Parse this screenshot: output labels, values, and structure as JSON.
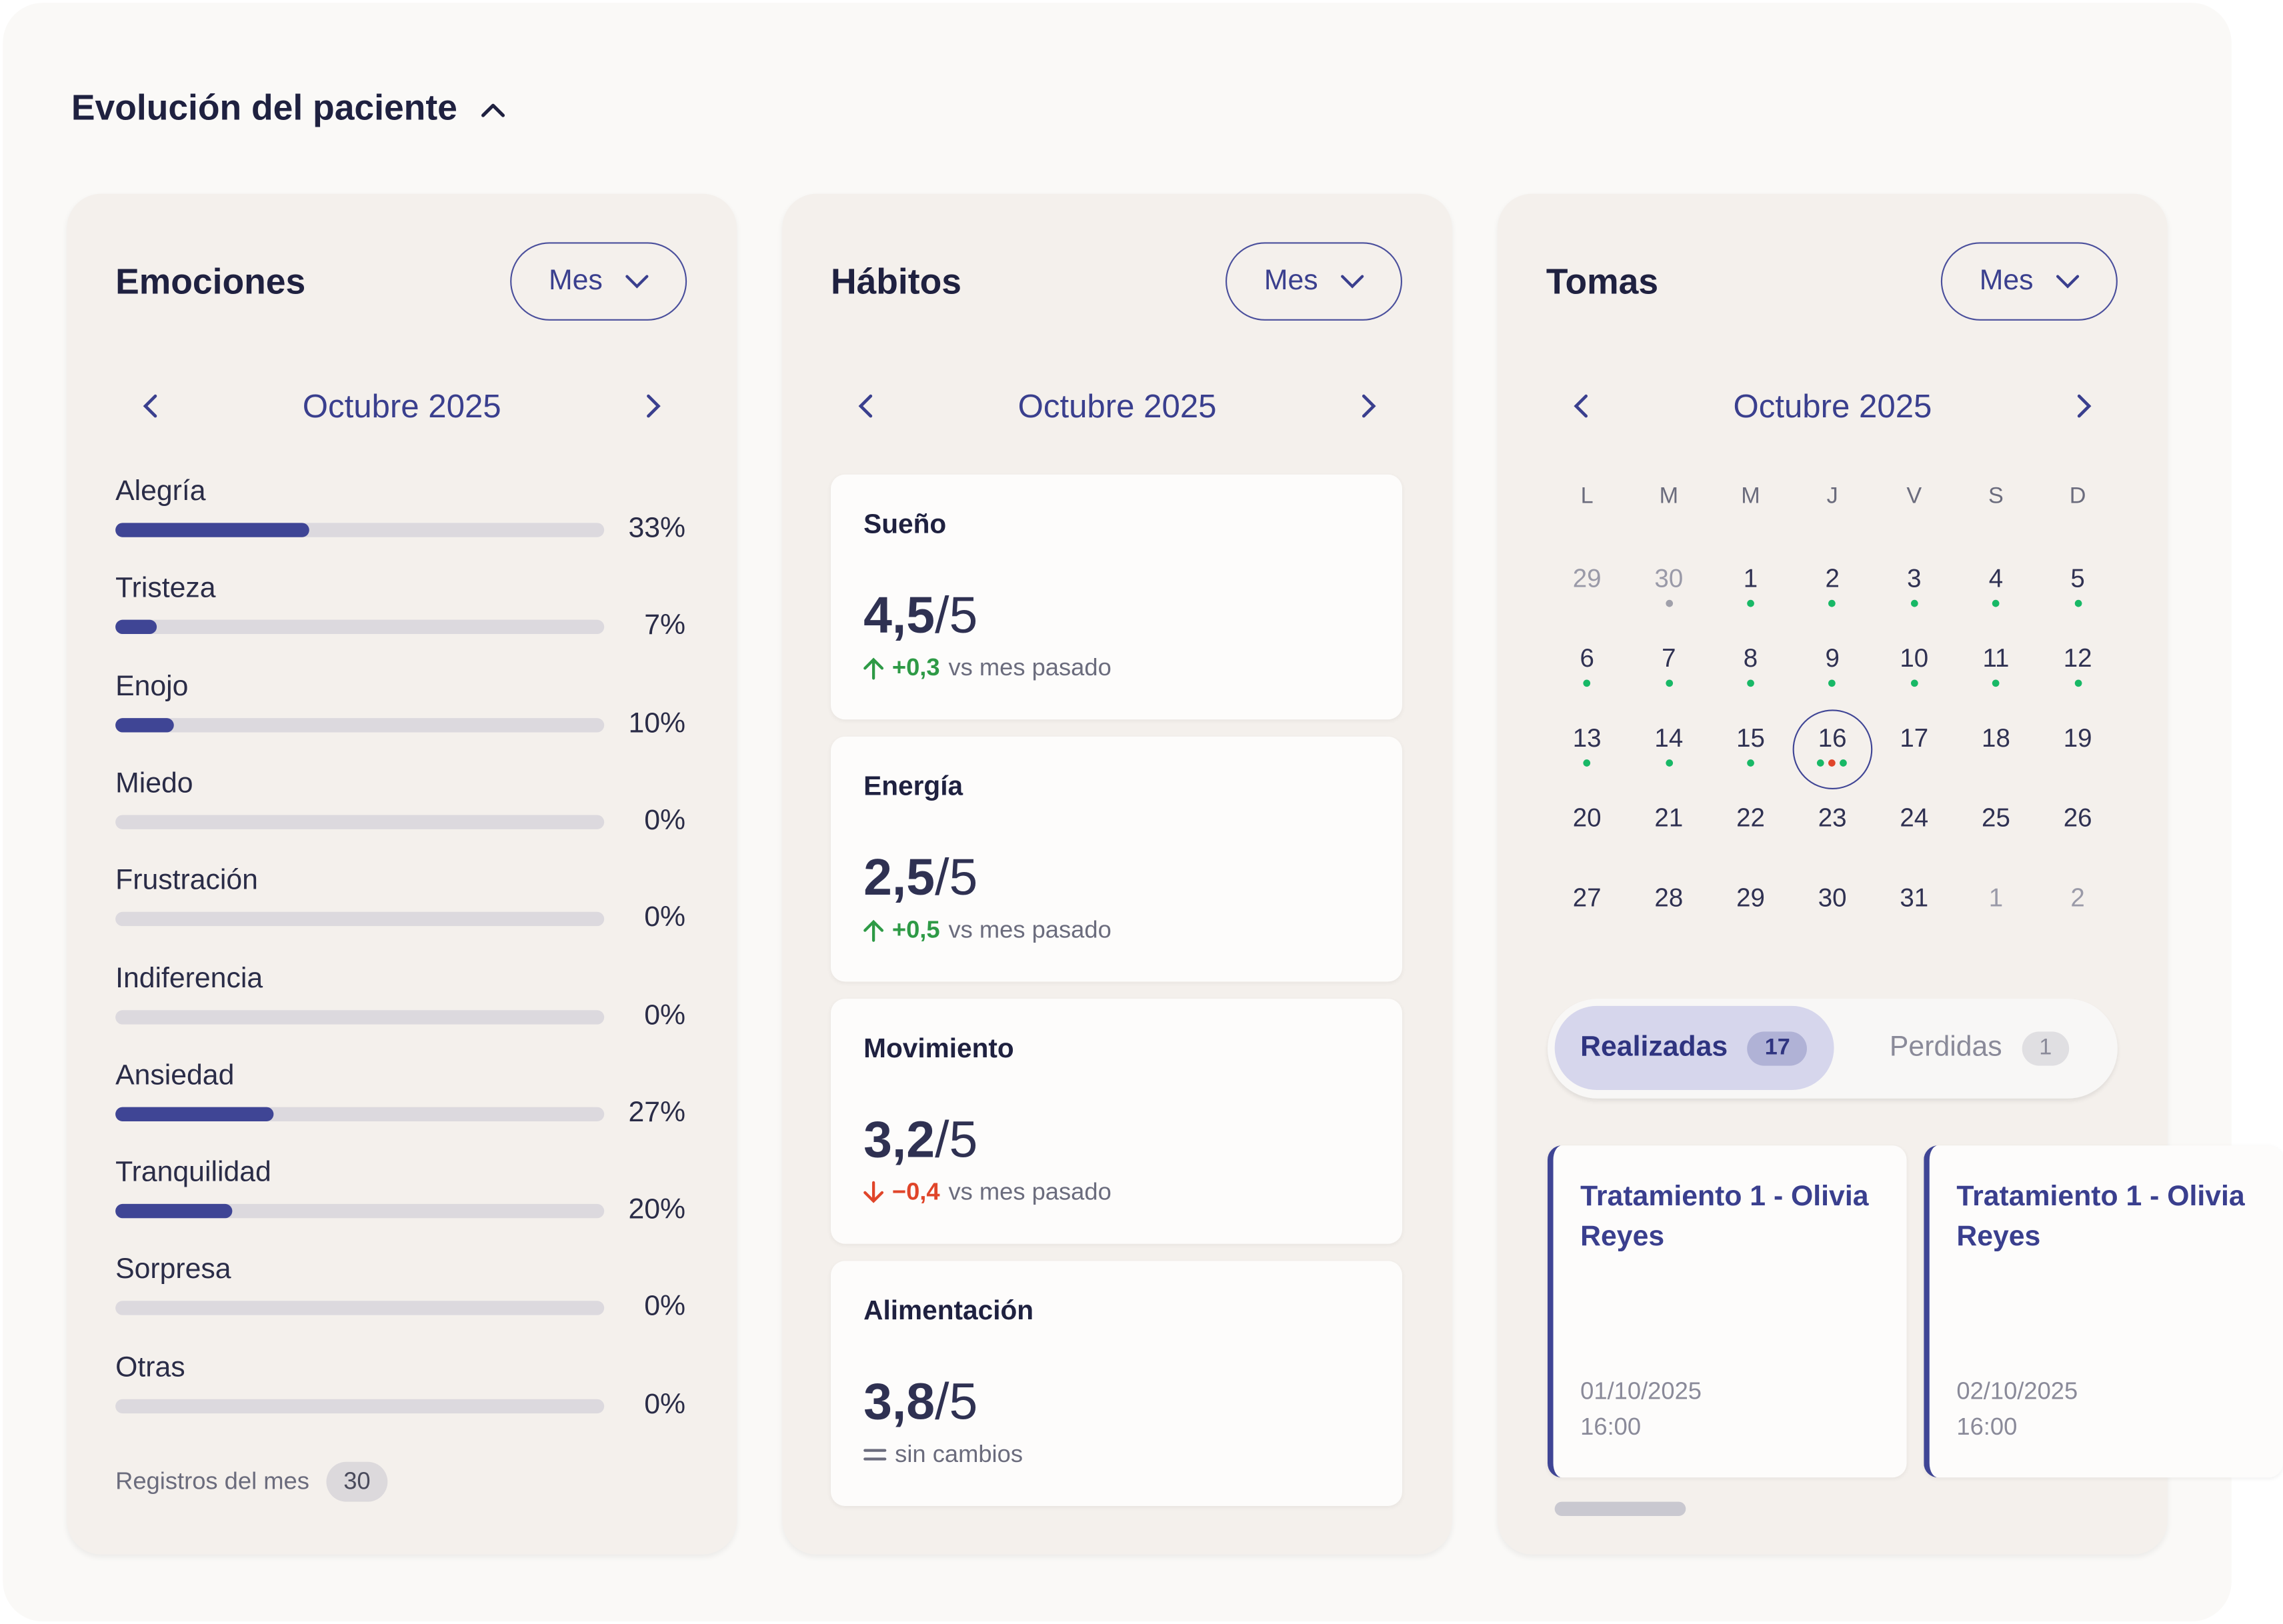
{
  "title": "Evolución del paciente",
  "colors": {
    "accent": "#3f4595",
    "positive": "#2e9a46",
    "negative": "#e0452a",
    "dot_ok": "#18b866",
    "dot_missed": "#e0452a",
    "dot_past": "#a0a0aa"
  },
  "emociones": {
    "title": "Emociones",
    "period": "Mes",
    "month": "Octubre 2025",
    "items": [
      {
        "label": "Alegría",
        "pct": 33,
        "text": "33%"
      },
      {
        "label": "Tristeza",
        "pct": 7,
        "text": "7%"
      },
      {
        "label": "Enojo",
        "pct": 10,
        "text": "10%"
      },
      {
        "label": "Miedo",
        "pct": 0,
        "text": "0%"
      },
      {
        "label": "Frustración",
        "pct": 0,
        "text": "0%"
      },
      {
        "label": "Indiferencia",
        "pct": 0,
        "text": "0%"
      },
      {
        "label": "Ansiedad",
        "pct": 27,
        "text": "27%"
      },
      {
        "label": "Tranquilidad",
        "pct": 20,
        "text": "20%"
      },
      {
        "label": "Sorpresa",
        "pct": 0,
        "text": "0%"
      },
      {
        "label": "Otras",
        "pct": 0,
        "text": "0%"
      }
    ],
    "registros_label": "Registros del mes",
    "registros": "30"
  },
  "habitos": {
    "title": "Hábitos",
    "period": "Mes",
    "month": "Octubre 2025",
    "items": [
      {
        "name": "Sueño",
        "value": "4,5",
        "max": "/5",
        "trend": "up",
        "delta": "+0,3",
        "note": "vs mes pasado"
      },
      {
        "name": "Energía",
        "value": "2,5",
        "max": "/5",
        "trend": "up",
        "delta": "+0,5",
        "note": "vs mes pasado"
      },
      {
        "name": "Movimiento",
        "value": "3,2",
        "max": "/5",
        "trend": "down",
        "delta": "−0,4",
        "note": "vs mes pasado"
      },
      {
        "name": "Alimentación",
        "value": "3,8",
        "max": "/5",
        "trend": "same",
        "delta": "",
        "note": "sin cambios"
      }
    ]
  },
  "tomas": {
    "title": "Tomas",
    "period": "Mes",
    "month": "Octubre 2025",
    "weekdays": [
      "L",
      "M",
      "M",
      "J",
      "V",
      "S",
      "D"
    ],
    "weeks": [
      [
        {
          "d": "29",
          "o": true
        },
        {
          "d": "30",
          "o": true,
          "dots": [
            "past"
          ]
        },
        {
          "d": "1",
          "dots": [
            "ok"
          ]
        },
        {
          "d": "2",
          "dots": [
            "ok"
          ]
        },
        {
          "d": "3",
          "dots": [
            "ok"
          ]
        },
        {
          "d": "4",
          "dots": [
            "ok"
          ]
        },
        {
          "d": "5",
          "dots": [
            "ok"
          ]
        }
      ],
      [
        {
          "d": "6",
          "dots": [
            "ok"
          ]
        },
        {
          "d": "7",
          "dots": [
            "ok"
          ]
        },
        {
          "d": "8",
          "dots": [
            "ok"
          ]
        },
        {
          "d": "9",
          "dots": [
            "ok"
          ]
        },
        {
          "d": "10",
          "dots": [
            "ok"
          ]
        },
        {
          "d": "11",
          "dots": [
            "ok"
          ]
        },
        {
          "d": "12",
          "dots": [
            "ok"
          ]
        }
      ],
      [
        {
          "d": "13",
          "dots": [
            "ok"
          ]
        },
        {
          "d": "14",
          "dots": [
            "ok"
          ]
        },
        {
          "d": "15",
          "dots": [
            "ok"
          ]
        },
        {
          "d": "16",
          "sel": true,
          "dots": [
            "ok",
            "missed",
            "ok"
          ]
        },
        {
          "d": "17"
        },
        {
          "d": "18"
        },
        {
          "d": "19"
        }
      ],
      [
        {
          "d": "20"
        },
        {
          "d": "21"
        },
        {
          "d": "22"
        },
        {
          "d": "23"
        },
        {
          "d": "24"
        },
        {
          "d": "25"
        },
        {
          "d": "26"
        }
      ],
      [
        {
          "d": "27"
        },
        {
          "d": "28"
        },
        {
          "d": "29"
        },
        {
          "d": "30"
        },
        {
          "d": "31"
        },
        {
          "d": "1",
          "o": true
        },
        {
          "d": "2",
          "o": true
        }
      ]
    ],
    "tabs": [
      {
        "label": "Realizadas",
        "count": "17",
        "active": true
      },
      {
        "label": "Perdidas",
        "count": "1"
      }
    ],
    "cards": [
      {
        "title": "Tratamiento 1 - Olivia Reyes",
        "date": "01/10/2025",
        "time": "16:00"
      },
      {
        "title": "Tratamiento 1 - Olivia Reyes",
        "date": "02/10/2025",
        "time": "16:00"
      }
    ]
  }
}
